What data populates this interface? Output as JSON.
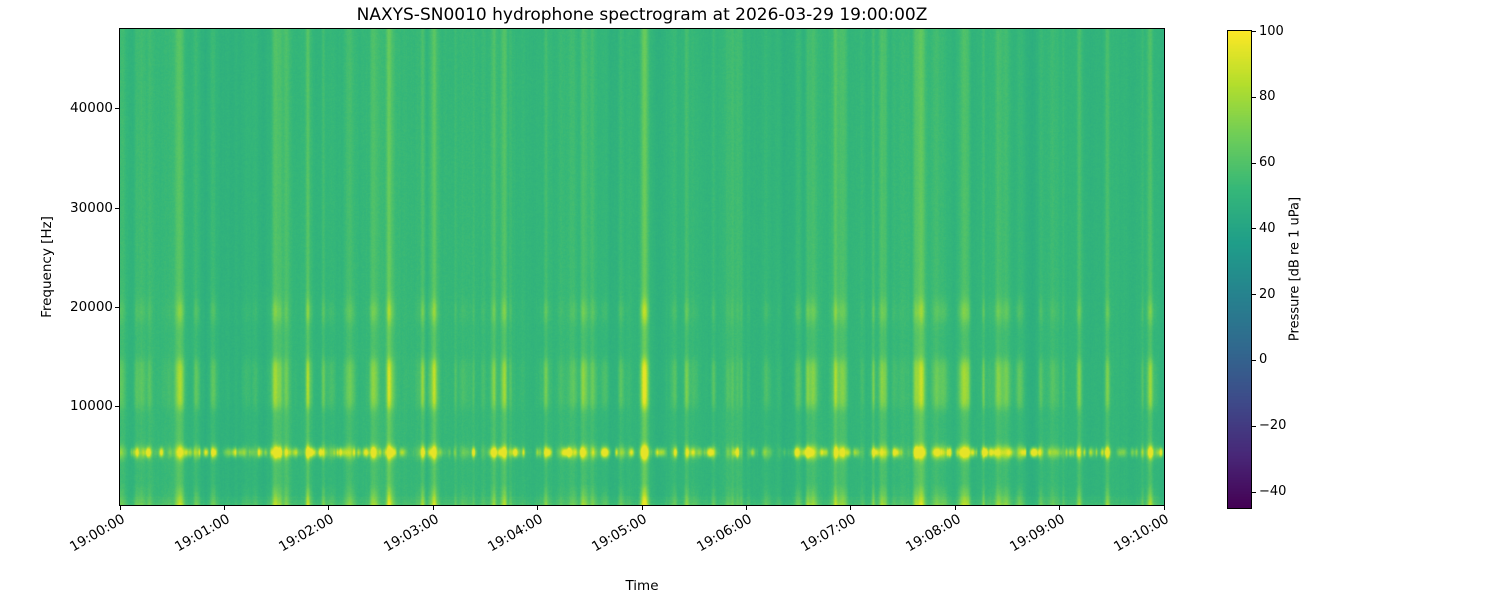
{
  "chart_data": {
    "type": "heatmap",
    "subtype": "spectrogram",
    "title": "NAXYS-SN0010 hydrophone spectrogram at 2026-03-29 19:00:00Z",
    "xlabel": "Time",
    "ylabel": "Frequency [Hz]",
    "x_tick_labels": [
      "19:00:00",
      "19:01:00",
      "19:02:00",
      "19:03:00",
      "19:04:00",
      "19:05:00",
      "19:06:00",
      "19:07:00",
      "19:08:00",
      "19:09:00",
      "19:10:00"
    ],
    "x_span_seconds": 600,
    "y_ticks": [
      10000,
      20000,
      30000,
      40000
    ],
    "y_tick_labels": [
      "10000",
      "20000",
      "30000",
      "40000"
    ],
    "ylim": [
      0,
      48000
    ],
    "grid": false,
    "colormap": "viridis",
    "colormap_stops": [
      "#440154",
      "#482878",
      "#3e4a89",
      "#31688e",
      "#26828e",
      "#1f9e89",
      "#35b779",
      "#6dcd59",
      "#b4de2c",
      "#fde725"
    ],
    "colorbar": {
      "label": "Pressure [dB re 1 uPa]",
      "tick_values": [
        100,
        80,
        60,
        40,
        20,
        0,
        -20,
        -40
      ],
      "tick_labels": [
        "100",
        "80",
        "60",
        "40",
        "20",
        "0",
        "−20",
        "−40"
      ],
      "vmin": -45,
      "vmax": 100,
      "position": "right"
    },
    "content_description": {
      "background_level_db": 50,
      "tonal_burst_band_hz": 5300,
      "broadband_noise_band_hz": [
        10000,
        14500
      ],
      "secondary_band_hz": 19500,
      "low_frequency_band_hz": [
        0,
        2000
      ],
      "transient_vertical_streaks": "broadband impulsive events every few seconds spanning all frequencies, strongest 5-15 kHz, peaking roughly 70-90 dB"
    }
  }
}
